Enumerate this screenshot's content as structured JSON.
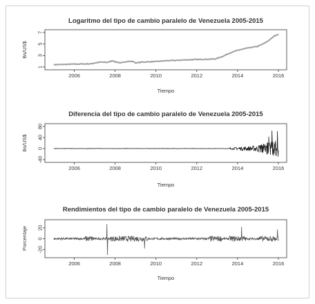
{
  "colors": {
    "series": "#9a9a9a",
    "series_dark": "#2a2a2a",
    "axis": "#333333"
  },
  "chart_data": [
    {
      "type": "line",
      "title": "Logaritmo del tipo de cambio paralelo de Venezuela 2005-2015",
      "xlabel": "Tiempo",
      "ylabel": "Bs/US$",
      "xlim": [
        2005,
        2016
      ],
      "ylim": [
        1,
        7
      ],
      "xticks": [
        "2006",
        "2008",
        "2010",
        "2012",
        "2014",
        "2016"
      ],
      "yticks": [
        "1",
        "3",
        "5",
        "7"
      ],
      "x": [
        2005.0,
        2006.0,
        2006.8,
        2007.0,
        2007.3,
        2007.6,
        2007.9,
        2008.0,
        2008.3,
        2008.6,
        2008.9,
        2009.0,
        2009.3,
        2009.6,
        2010.0,
        2010.5,
        2011.0,
        2011.5,
        2012.0,
        2012.5,
        2012.9,
        2013.0,
        2013.3,
        2013.6,
        2014.0,
        2014.5,
        2015.0,
        2015.3,
        2015.6,
        2015.8,
        2016.0
      ],
      "series": [
        {
          "values": [
            1.4,
            1.5,
            1.55,
            1.7,
            1.85,
            1.8,
            2.1,
            1.9,
            1.7,
            2.0,
            1.95,
            1.7,
            1.85,
            1.9,
            1.95,
            2.1,
            2.15,
            2.25,
            2.3,
            2.35,
            2.4,
            2.5,
            2.9,
            3.4,
            3.9,
            4.3,
            4.6,
            5.1,
            5.8,
            6.4,
            6.7
          ]
        }
      ]
    },
    {
      "type": "line",
      "title": "Diferencia del tipo de cambio paralelo de Venezuela 2005-2015",
      "xlabel": "Tiempo",
      "ylabel": "Bs/US$",
      "xlim": [
        2005,
        2016
      ],
      "ylim": [
        -40,
        80
      ],
      "xticks": [
        "2006",
        "2008",
        "2010",
        "2012",
        "2014",
        "2016"
      ],
      "yticks": [
        "-40",
        "0",
        "40",
        "80"
      ],
      "series": [
        {
          "description_free": true,
          "values": [
            0
          ]
        }
      ]
    },
    {
      "type": "line",
      "title": "Rendimientos del tipo de cambio paralelo de Venezuela 2005-2015",
      "xlabel": "Tiempo",
      "ylabel": "Porcentaje",
      "xlim": [
        2005,
        2016
      ],
      "ylim": [
        -30,
        30
      ],
      "xticks": [
        "2006",
        "2008",
        "2010",
        "2012",
        "2014",
        "2016"
      ],
      "yticks": [
        "-20",
        "0",
        "20"
      ],
      "series": [
        {
          "values": [
            0
          ]
        }
      ]
    }
  ]
}
